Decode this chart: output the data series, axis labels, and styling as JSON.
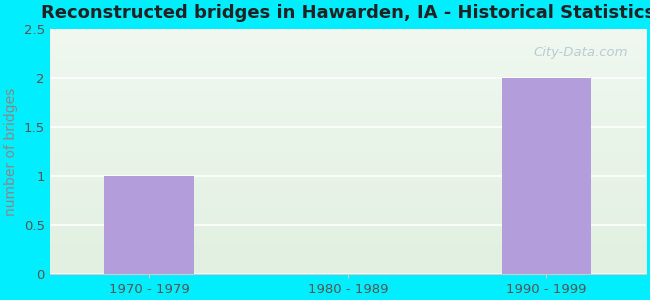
{
  "title": "Reconstructed bridges in Hawarden, IA - Historical Statistics",
  "categories": [
    "1970 - 1979",
    "1980 - 1989",
    "1990 - 1999"
  ],
  "values": [
    1,
    0,
    2
  ],
  "bar_color": "#b39ddb",
  "ylabel": "number of bridges",
  "ylim": [
    0,
    2.5
  ],
  "yticks": [
    0,
    0.5,
    1,
    1.5,
    2,
    2.5
  ],
  "background_outer": "#00eeff",
  "background_inner": "#eef5ee",
  "title_fontsize": 13,
  "axis_label_fontsize": 10,
  "tick_fontsize": 9.5,
  "bar_width": 0.45,
  "watermark": "City-Data.com",
  "ylabel_color": "#888888",
  "tick_color": "#555555",
  "title_color": "#222222",
  "grid_color": "#ffffff",
  "spine_bottom_color": "#cccccc"
}
